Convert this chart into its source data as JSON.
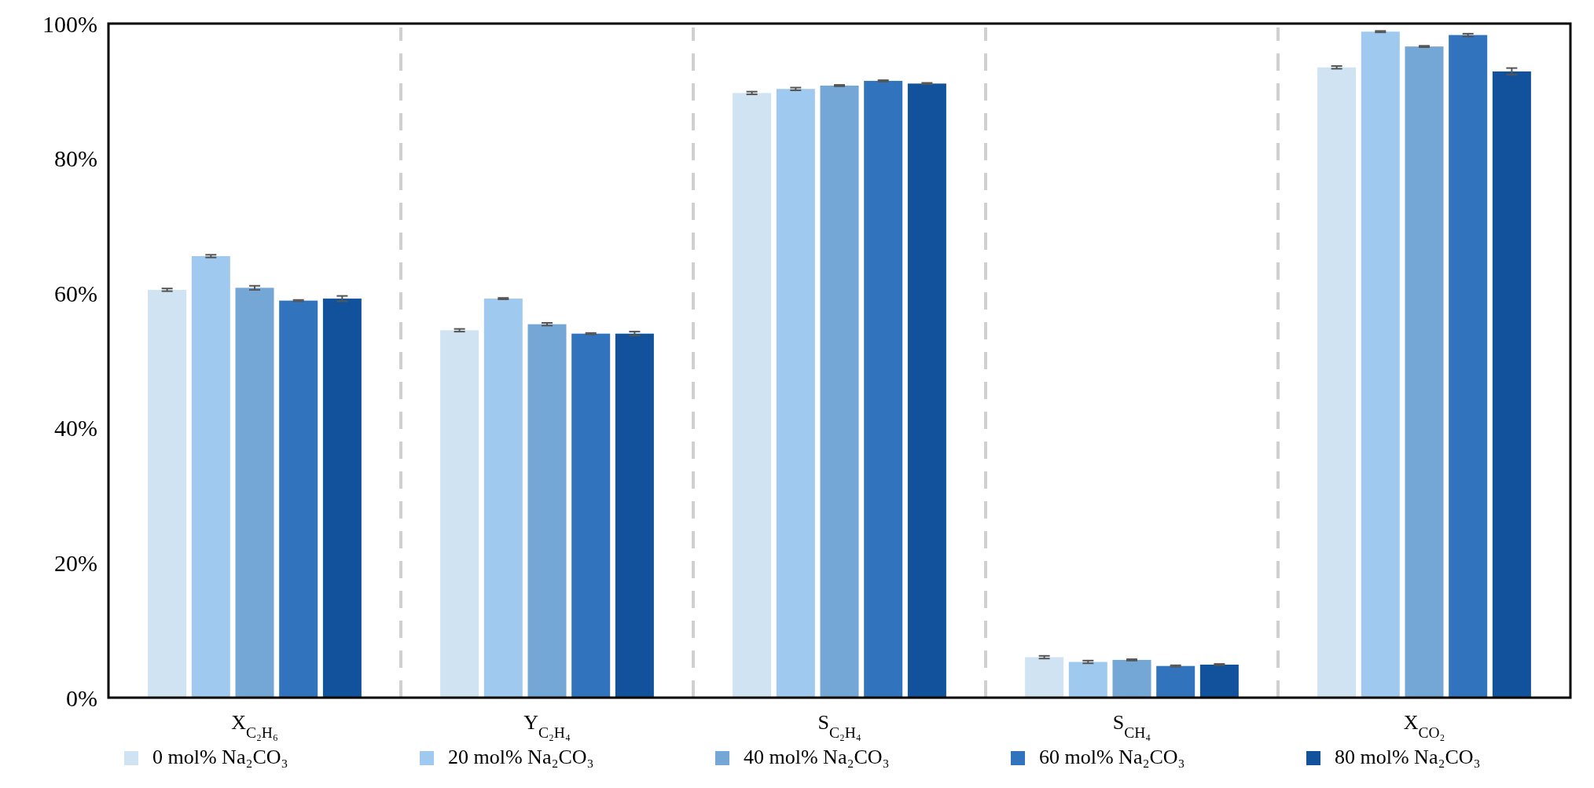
{
  "chart_data": {
    "type": "bar",
    "categories": [
      "X$_{C₂H₆}$",
      "Y$_{C₂H₄}$",
      "S$_{C₂H₄}$",
      "S$_{CH₄}$",
      "X$_{CO₂}$"
    ],
    "series": [
      {
        "name": "0 mol% Na₂CO₃",
        "color": "#cfe3f2",
        "values": [
          60.5,
          54.5,
          89.7,
          6.0,
          93.5
        ],
        "errors": [
          0.2,
          0.2,
          0.2,
          0.2,
          0.2
        ]
      },
      {
        "name": "20 mol% Na₂CO₃",
        "color": "#9fc9ee",
        "values": [
          65.5,
          59.2,
          90.3,
          5.3,
          98.8
        ],
        "errors": [
          0.2,
          0.1,
          0.2,
          0.2,
          0.1
        ]
      },
      {
        "name": "40 mol% Na₂CO₃",
        "color": "#74a6d6",
        "values": [
          60.8,
          55.4,
          90.8,
          5.6,
          96.6
        ],
        "errors": [
          0.3,
          0.2,
          0.1,
          0.1,
          0.1
        ]
      },
      {
        "name": "60 mol% Na₂CO₃",
        "color": "#3273be",
        "values": [
          58.9,
          54.0,
          91.5,
          4.7,
          98.3
        ],
        "errors": [
          0.1,
          0.1,
          0.1,
          0.1,
          0.2
        ]
      },
      {
        "name": "80 mol% Na₂CO₃",
        "color": "#12529c",
        "values": [
          59.2,
          54.0,
          91.1,
          4.9,
          92.9
        ],
        "errors": [
          0.4,
          0.3,
          0.1,
          0.1,
          0.5
        ]
      }
    ],
    "ylim": [
      0,
      100
    ],
    "yticks": [
      {
        "value": 0,
        "label": "0%"
      },
      {
        "value": 20,
        "label": "20%"
      },
      {
        "value": 40,
        "label": "40%"
      },
      {
        "value": 60,
        "label": "60%"
      },
      {
        "value": 80,
        "label": "80%"
      },
      {
        "value": 100,
        "label": "100%"
      }
    ],
    "grid": "x",
    "legend": "bottom"
  }
}
